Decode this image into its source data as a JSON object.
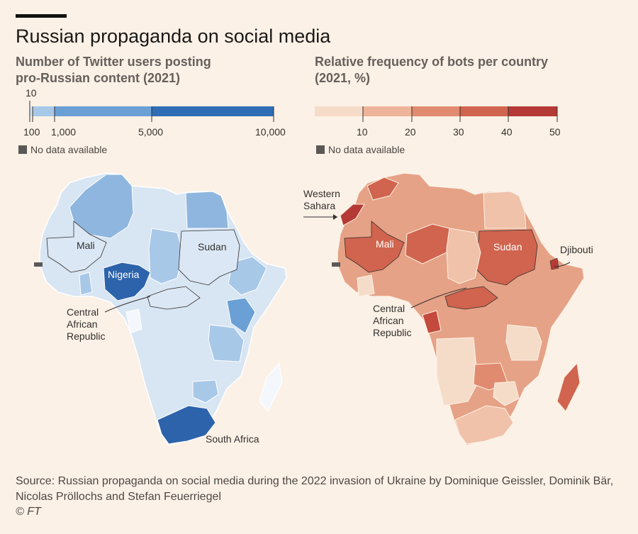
{
  "title": "Russian propaganda on social media",
  "left": {
    "subtitle": "Number of Twitter users posting\npro-Russian content (2021)",
    "scale": {
      "top_tick": "10",
      "ticks": [
        "100",
        "1,000",
        "5,000",
        "10,000"
      ],
      "colors": [
        "#a8c8e8",
        "#6aa0d6",
        "#2f6db5",
        "#2d63ab"
      ]
    },
    "no_data": "No data available",
    "labels": {
      "mali": "Mali",
      "sudan": "Sudan",
      "nigeria": "Nigeria",
      "car": "Central\nAfrican\nRepublic",
      "south_africa": "South Africa"
    }
  },
  "right": {
    "subtitle": "Relative frequency of bots per country\n(2021, %)",
    "scale": {
      "ticks": [
        "10",
        "20",
        "30",
        "40",
        "50"
      ],
      "colors": [
        "#f5dcc9",
        "#eeb49a",
        "#e08b70",
        "#d0644e",
        "#b53a35"
      ]
    },
    "no_data": "No data available",
    "labels": {
      "western_sahara": "Western\nSahara",
      "mali": "Mali",
      "sudan": "Sudan",
      "djibouti": "Djibouti",
      "car": "Central\nAfrican\nRepublic"
    }
  },
  "source": "Source: Russian propaganda on social media during the 2022 invasion of Ukraine by Dominique Geissler, Dominik Bär, Nicolas Pröllochs and Stefan Feuerriegel",
  "copyright": "© FT"
}
